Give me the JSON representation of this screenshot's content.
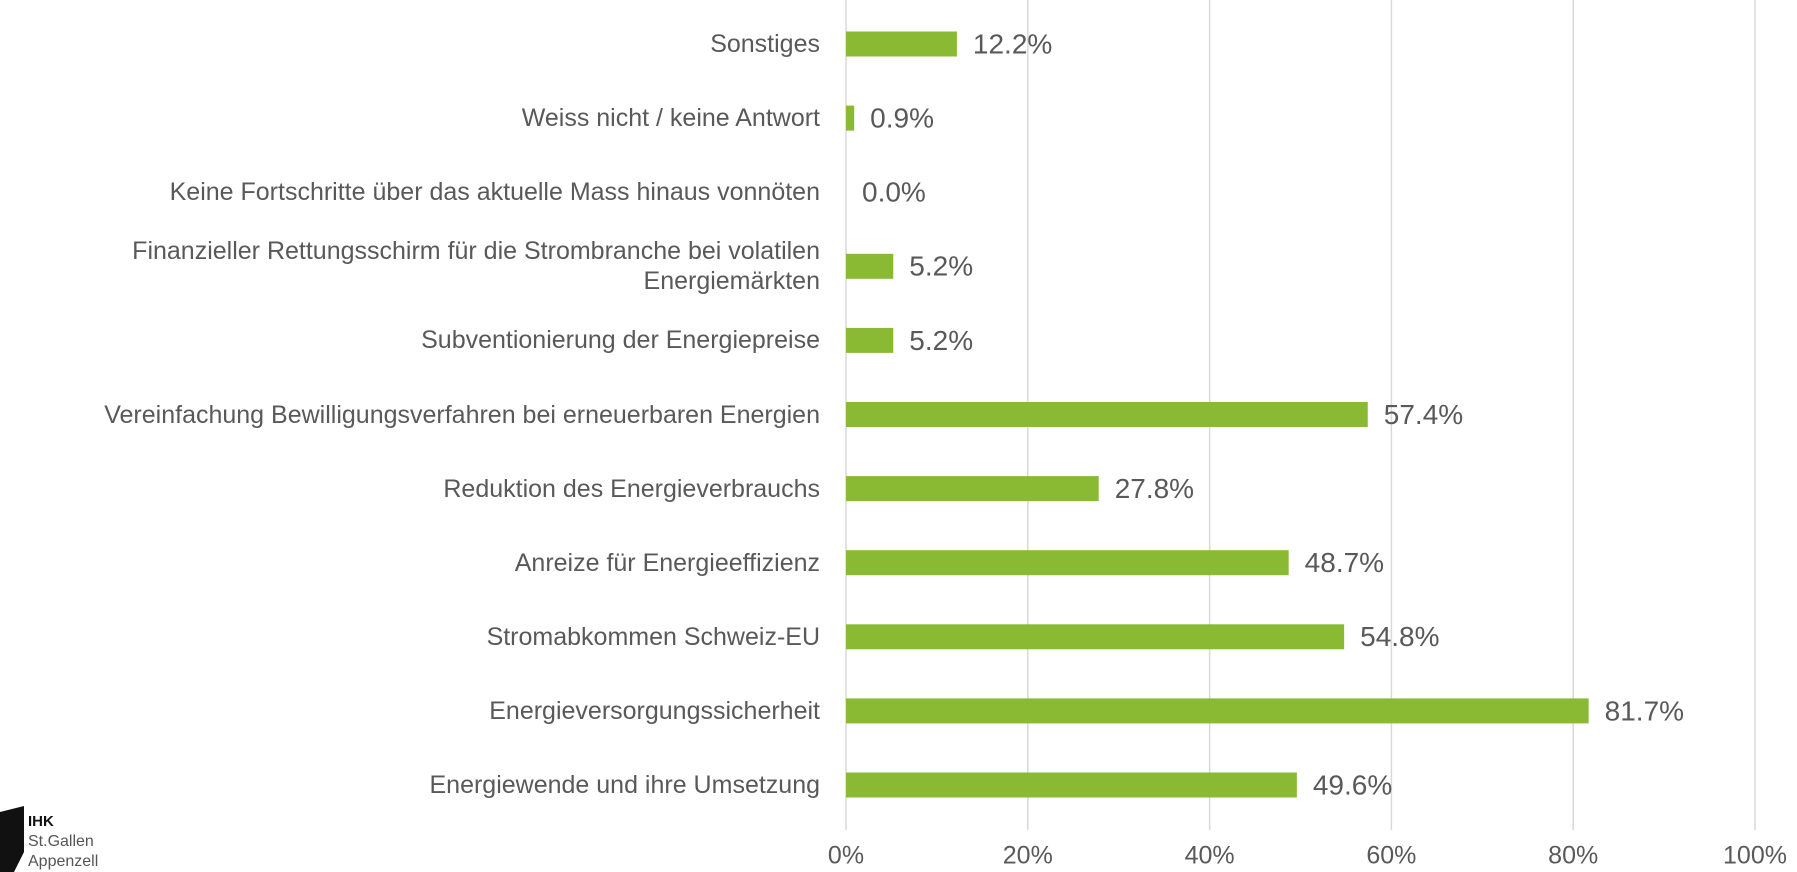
{
  "chart_data": {
    "type": "bar",
    "orientation": "horizontal",
    "categories": [
      "Sonstiges",
      "Weiss nicht / keine Antwort",
      "Keine Fortschritte über das aktuelle Mass hinaus vonnöten",
      "Finanzieller Rettungsschirm für die Strombranche bei volatilen Energiemärkten",
      "Subventionierung der Energiepreise",
      "Vereinfachung Bewilligungsverfahren bei erneuerbaren Energien",
      "Reduktion des Energieverbrauchs",
      "Anreize für Energieeffizienz",
      "Stromabkommen Schweiz-EU",
      "Energieversorgungssicherheit",
      "Energiewende und ihre Umsetzung"
    ],
    "values": [
      12.2,
      0.9,
      0.0,
      5.2,
      5.2,
      57.4,
      27.8,
      48.7,
      54.8,
      81.7,
      49.6
    ],
    "value_labels": [
      "12.2%",
      "0.9%",
      "0.0%",
      "5.2%",
      "5.2%",
      "57.4%",
      "27.8%",
      "48.7%",
      "54.8%",
      "81.7%",
      "49.6%"
    ],
    "color": "#8aba34",
    "xlim": [
      0,
      100
    ],
    "xticks": [
      {
        "value": 0,
        "label": "0%"
      },
      {
        "value": 20,
        "label": "20%"
      },
      {
        "value": 40,
        "label": "40%"
      },
      {
        "value": 60,
        "label": "60%"
      },
      {
        "value": 80,
        "label": "80%"
      },
      {
        "value": 100,
        "label": "100%"
      }
    ],
    "grid": true
  },
  "logo": {
    "name": "IHK",
    "lines": [
      "St.Gallen",
      "Appenzell"
    ]
  }
}
